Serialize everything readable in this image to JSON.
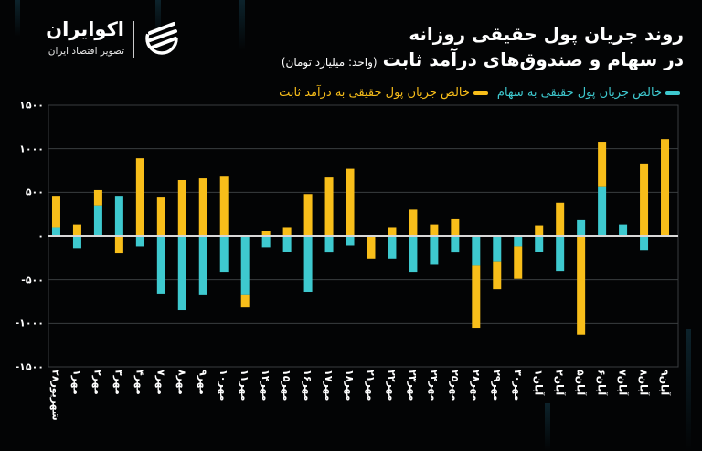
{
  "brand": {
    "name": "اکوایران",
    "tagline": "تصویر اقتصاد ایران"
  },
  "header": {
    "title_line1": "روند جریان پول حقیقی روزانه",
    "title_line2": "در سهام و صندوق‌های درآمد ثابت",
    "unit": "(واحد: میلیارد تومان)"
  },
  "legend": {
    "stocks": "خالص جریان پول حقیقی به سهام",
    "fixed_income": "خالص جریان پول حقیقی به درآمد ثابت"
  },
  "colors": {
    "background": "#030405",
    "stocks": "#3ec9cf",
    "fixed_income": "#f8be1a",
    "gridline": "#3a3d40",
    "zero_line": "#d8d8d8",
    "text": "#ffffff"
  },
  "chart_data": {
    "type": "bar",
    "stacked": true,
    "title": "روند جریان پول حقیقی روزانه در سهام و صندوق‌های درآمد ثابت",
    "subtitle": "(واحد: میلیارد تومان)",
    "xlabel": "",
    "ylabel": "",
    "ylim": [
      -1500,
      1500
    ],
    "yticks": [
      1500,
      1000,
      500,
      0,
      -500,
      -1000,
      -1500
    ],
    "ytick_labels": [
      "۱۵۰۰",
      "۱۰۰۰",
      "۵۰۰",
      "۰",
      "-۵۰۰",
      "-۱۰۰۰",
      "-۱۵۰۰"
    ],
    "grid": true,
    "legend_position": "top",
    "categories": [
      "شهریور۲۸",
      "مهر۱",
      "مهر۲",
      "مهر۳",
      "مهر۴",
      "مهر۷",
      "مهر۸",
      "مهر۹",
      "مهر۱۰",
      "مهر۱۱",
      "مهر۱۴",
      "مهر۱۵",
      "مهر۱۶",
      "مهر۱۷",
      "مهر۱۸",
      "مهر۲۱",
      "مهر۲۲",
      "مهر۲۳",
      "مهر۲۴",
      "مهر۲۵",
      "مهر۲۸",
      "مهر۲۹",
      "مهر۳۰",
      "آبان۱",
      "آبان۲",
      "آبان۵",
      "آبان۶",
      "آبان۷",
      "آبان۸",
      "آبان۹"
    ],
    "series": [
      {
        "name": "خالص جریان پول حقیقی به سهام",
        "color": "#3ec9cf",
        "values": [
          100,
          -140,
          350,
          460,
          -120,
          -660,
          -850,
          -670,
          -410,
          -670,
          -130,
          -180,
          -640,
          -190,
          -110,
          10,
          -260,
          -410,
          -330,
          -190,
          -340,
          -290,
          -120,
          -180,
          -400,
          190,
          570,
          130,
          -160,
          0
        ]
      },
      {
        "name": "خالص جریان پول حقیقی به درآمد ثابت",
        "color": "#f8be1a",
        "values": [
          360,
          130,
          175,
          -200,
          890,
          450,
          640,
          660,
          690,
          -150,
          60,
          100,
          480,
          670,
          770,
          -260,
          100,
          300,
          130,
          200,
          -720,
          -320,
          -370,
          120,
          380,
          -1130,
          510,
          0,
          830,
          1110
        ]
      }
    ]
  }
}
